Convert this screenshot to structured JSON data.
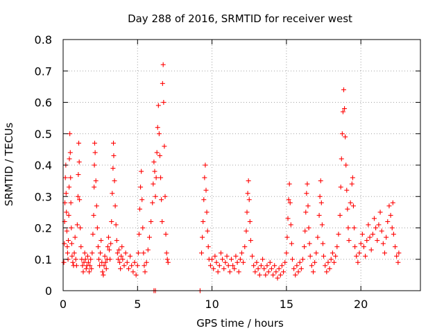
{
  "chart_data": {
    "type": "scatter",
    "title": "Day 288 of 2016, SRMTID for receiver west",
    "xlabel": "GPS time / hours",
    "ylabel": "SRMTID / TECUs",
    "xlim": [
      0,
      24
    ],
    "ylim": [
      0,
      0.8
    ],
    "xticks": [
      0,
      5,
      10,
      15,
      20
    ],
    "yticks": [
      0,
      0.1,
      0.2,
      0.3,
      0.4,
      0.5,
      0.6,
      0.7,
      0.8
    ],
    "xtick_labels": [
      "0",
      "5",
      "10",
      "15",
      "20"
    ],
    "ytick_labels": [
      "0",
      "0.1",
      "0.2",
      "0.3",
      "0.4",
      "0.5",
      "0.6",
      "0.7",
      "0.8"
    ],
    "grid": true,
    "marker": "+",
    "color": "#ff0000",
    "series": [
      {
        "name": "SRMTID",
        "points": [
          [
            0.05,
            0.09
          ],
          [
            0.08,
            0.15
          ],
          [
            0.1,
            0.22
          ],
          [
            0.12,
            0.28
          ],
          [
            0.15,
            0.36
          ],
          [
            0.18,
            0.4
          ],
          [
            0.2,
            0.31
          ],
          [
            0.22,
            0.25
          ],
          [
            0.25,
            0.19
          ],
          [
            0.28,
            0.14
          ],
          [
            0.3,
            0.12
          ],
          [
            0.33,
            0.1
          ],
          [
            0.35,
            0.16
          ],
          [
            0.38,
            0.24
          ],
          [
            0.4,
            0.33
          ],
          [
            0.42,
            0.42
          ],
          [
            0.45,
            0.5
          ],
          [
            0.48,
            0.44
          ],
          [
            0.5,
            0.36
          ],
          [
            0.52,
            0.28
          ],
          [
            0.55,
            0.2
          ],
          [
            0.58,
            0.15
          ],
          [
            0.6,
            0.11
          ],
          [
            0.65,
            0.09
          ],
          [
            0.7,
            0.08
          ],
          [
            0.75,
            0.12
          ],
          [
            0.8,
            0.17
          ],
          [
            0.85,
            0.1
          ],
          [
            0.9,
            0.08
          ],
          [
            0.95,
            0.21
          ],
          [
            1.0,
            0.3
          ],
          [
            1.02,
            0.37
          ],
          [
            1.05,
            0.47
          ],
          [
            1.08,
            0.41
          ],
          [
            1.1,
            0.29
          ],
          [
            1.15,
            0.2
          ],
          [
            1.2,
            0.14
          ],
          [
            1.25,
            0.1
          ],
          [
            1.3,
            0.08
          ],
          [
            1.35,
            0.06
          ],
          [
            1.4,
            0.09
          ],
          [
            1.45,
            0.12
          ],
          [
            1.5,
            0.1
          ],
          [
            1.55,
            0.07
          ],
          [
            1.6,
            0.08
          ],
          [
            1.65,
            0.11
          ],
          [
            1.7,
            0.09
          ],
          [
            1.75,
            0.06
          ],
          [
            1.8,
            0.08
          ],
          [
            1.85,
            0.1
          ],
          [
            1.9,
            0.07
          ],
          [
            1.95,
            0.12
          ],
          [
            2.0,
            0.18
          ],
          [
            2.05,
            0.24
          ],
          [
            2.08,
            0.33
          ],
          [
            2.1,
            0.4
          ],
          [
            2.12,
            0.47
          ],
          [
            2.15,
            0.44
          ],
          [
            2.2,
            0.35
          ],
          [
            2.25,
            0.27
          ],
          [
            2.3,
            0.2
          ],
          [
            2.35,
            0.14
          ],
          [
            2.4,
            0.1
          ],
          [
            2.45,
            0.08
          ],
          [
            2.5,
            0.12
          ],
          [
            2.55,
            0.16
          ],
          [
            2.6,
            0.09
          ],
          [
            2.65,
            0.06
          ],
          [
            2.7,
            0.05
          ],
          [
            2.75,
            0.08
          ],
          [
            2.8,
            0.11
          ],
          [
            2.85,
            0.09
          ],
          [
            2.9,
            0.07
          ],
          [
            2.95,
            0.1
          ],
          [
            3.0,
            0.14
          ],
          [
            3.05,
            0.17
          ],
          [
            3.1,
            0.13
          ],
          [
            3.15,
            0.1
          ],
          [
            3.2,
            0.15
          ],
          [
            3.25,
            0.22
          ],
          [
            3.3,
            0.31
          ],
          [
            3.35,
            0.39
          ],
          [
            3.38,
            0.47
          ],
          [
            3.4,
            0.43
          ],
          [
            3.45,
            0.35
          ],
          [
            3.5,
            0.27
          ],
          [
            3.55,
            0.21
          ],
          [
            3.6,
            0.16
          ],
          [
            3.65,
            0.12
          ],
          [
            3.7,
            0.1
          ],
          [
            3.75,
            0.13
          ],
          [
            3.8,
            0.09
          ],
          [
            3.85,
            0.07
          ],
          [
            3.9,
            0.11
          ],
          [
            3.95,
            0.14
          ],
          [
            4.0,
            0.1
          ],
          [
            4.1,
            0.08
          ],
          [
            4.2,
            0.12
          ],
          [
            4.3,
            0.09
          ],
          [
            4.4,
            0.07
          ],
          [
            4.5,
            0.11
          ],
          [
            4.6,
            0.08
          ],
          [
            4.7,
            0.06
          ],
          [
            4.8,
            0.09
          ],
          [
            4.9,
            0.05
          ],
          [
            5.0,
            0.08
          ],
          [
            5.05,
            0.12
          ],
          [
            5.1,
            0.18
          ],
          [
            5.15,
            0.26
          ],
          [
            5.2,
            0.33
          ],
          [
            5.25,
            0.38
          ],
          [
            5.3,
            0.29
          ],
          [
            5.35,
            0.2
          ],
          [
            5.4,
            0.12
          ],
          [
            5.45,
            0.08
          ],
          [
            5.5,
            0.06
          ],
          [
            5.6,
            0.09
          ],
          [
            5.7,
            0.13
          ],
          [
            5.8,
            0.17
          ],
          [
            5.9,
            0.22
          ],
          [
            6.0,
            0.28
          ],
          [
            6.05,
            0.34
          ],
          [
            6.1,
            0.41
          ],
          [
            6.15,
            0.38
          ],
          [
            6.2,
            0.3
          ],
          [
            6.25,
            0.36
          ],
          [
            6.3,
            0.44
          ],
          [
            6.35,
            0.52
          ],
          [
            6.4,
            0.59
          ],
          [
            6.45,
            0.5
          ],
          [
            6.5,
            0.43
          ],
          [
            6.55,
            0.36
          ],
          [
            6.6,
            0.29
          ],
          [
            6.65,
            0.22
          ],
          [
            6.68,
            0.66
          ],
          [
            6.72,
            0.72
          ],
          [
            6.75,
            0.6
          ],
          [
            6.8,
            0.46
          ],
          [
            6.85,
            0.3
          ],
          [
            6.9,
            0.18
          ],
          [
            6.95,
            0.12
          ],
          [
            7.0,
            0.1
          ],
          [
            7.05,
            0.09
          ],
          [
            6.1,
            0.0
          ],
          [
            6.2,
            0.0
          ],
          [
            9.2,
            0.0
          ],
          [
            9.3,
            0.12
          ],
          [
            9.35,
            0.17
          ],
          [
            9.4,
            0.22
          ],
          [
            9.45,
            0.29
          ],
          [
            9.5,
            0.36
          ],
          [
            9.55,
            0.4
          ],
          [
            9.6,
            0.32
          ],
          [
            9.65,
            0.25
          ],
          [
            9.7,
            0.19
          ],
          [
            9.75,
            0.14
          ],
          [
            9.8,
            0.1
          ],
          [
            9.9,
            0.08
          ],
          [
            10.0,
            0.1
          ],
          [
            10.1,
            0.07
          ],
          [
            10.2,
            0.11
          ],
          [
            10.3,
            0.09
          ],
          [
            10.4,
            0.06
          ],
          [
            10.5,
            0.08
          ],
          [
            10.6,
            0.12
          ],
          [
            10.7,
            0.1
          ],
          [
            10.8,
            0.07
          ],
          [
            10.9,
            0.09
          ],
          [
            11.0,
            0.11
          ],
          [
            11.1,
            0.08
          ],
          [
            11.2,
            0.06
          ],
          [
            11.3,
            0.1
          ],
          [
            11.4,
            0.08
          ],
          [
            11.5,
            0.07
          ],
          [
            11.6,
            0.11
          ],
          [
            11.7,
            0.09
          ],
          [
            11.8,
            0.06
          ],
          [
            11.9,
            0.1
          ],
          [
            12.0,
            0.12
          ],
          [
            12.1,
            0.09
          ],
          [
            12.2,
            0.14
          ],
          [
            12.3,
            0.19
          ],
          [
            12.35,
            0.25
          ],
          [
            12.4,
            0.31
          ],
          [
            12.45,
            0.35
          ],
          [
            12.5,
            0.29
          ],
          [
            12.55,
            0.22
          ],
          [
            12.6,
            0.16
          ],
          [
            12.7,
            0.11
          ],
          [
            12.8,
            0.08
          ],
          [
            12.9,
            0.06
          ],
          [
            13.0,
            0.09
          ],
          [
            13.1,
            0.07
          ],
          [
            13.2,
            0.05
          ],
          [
            13.3,
            0.08
          ],
          [
            13.4,
            0.1
          ],
          [
            13.5,
            0.07
          ],
          [
            13.6,
            0.05
          ],
          [
            13.7,
            0.08
          ],
          [
            13.8,
            0.06
          ],
          [
            13.9,
            0.09
          ],
          [
            14.0,
            0.07
          ],
          [
            14.1,
            0.05
          ],
          [
            14.2,
            0.08
          ],
          [
            14.3,
            0.06
          ],
          [
            14.4,
            0.04
          ],
          [
            14.5,
            0.07
          ],
          [
            14.6,
            0.05
          ],
          [
            14.7,
            0.08
          ],
          [
            14.8,
            0.06
          ],
          [
            14.9,
            0.09
          ],
          [
            15.0,
            0.12
          ],
          [
            15.05,
            0.17
          ],
          [
            15.1,
            0.23
          ],
          [
            15.15,
            0.29
          ],
          [
            15.2,
            0.34
          ],
          [
            15.25,
            0.28
          ],
          [
            15.3,
            0.21
          ],
          [
            15.35,
            0.15
          ],
          [
            15.4,
            0.1
          ],
          [
            15.5,
            0.07
          ],
          [
            15.6,
            0.05
          ],
          [
            15.7,
            0.08
          ],
          [
            15.8,
            0.06
          ],
          [
            15.9,
            0.09
          ],
          [
            16.0,
            0.07
          ],
          [
            16.1,
            0.1
          ],
          [
            16.2,
            0.14
          ],
          [
            16.25,
            0.19
          ],
          [
            16.3,
            0.25
          ],
          [
            16.35,
            0.31
          ],
          [
            16.4,
            0.34
          ],
          [
            16.45,
            0.27
          ],
          [
            16.5,
            0.2
          ],
          [
            16.55,
            0.15
          ],
          [
            16.6,
            0.11
          ],
          [
            16.7,
            0.08
          ],
          [
            16.8,
            0.06
          ],
          [
            16.9,
            0.09
          ],
          [
            17.0,
            0.12
          ],
          [
            17.1,
            0.17
          ],
          [
            17.2,
            0.24
          ],
          [
            17.25,
            0.3
          ],
          [
            17.3,
            0.35
          ],
          [
            17.35,
            0.28
          ],
          [
            17.4,
            0.21
          ],
          [
            17.45,
            0.15
          ],
          [
            17.5,
            0.11
          ],
          [
            17.6,
            0.08
          ],
          [
            17.7,
            0.06
          ],
          [
            17.8,
            0.09
          ],
          [
            17.9,
            0.07
          ],
          [
            18.0,
            0.1
          ],
          [
            18.1,
            0.12
          ],
          [
            18.2,
            0.09
          ],
          [
            18.3,
            0.11
          ],
          [
            18.4,
            0.14
          ],
          [
            18.5,
            0.18
          ],
          [
            18.6,
            0.24
          ],
          [
            18.65,
            0.33
          ],
          [
            18.7,
            0.42
          ],
          [
            18.75,
            0.5
          ],
          [
            18.8,
            0.57
          ],
          [
            18.85,
            0.64
          ],
          [
            18.9,
            0.58
          ],
          [
            18.95,
            0.49
          ],
          [
            19.0,
            0.4
          ],
          [
            19.05,
            0.32
          ],
          [
            19.1,
            0.26
          ],
          [
            19.15,
            0.2
          ],
          [
            19.2,
            0.16
          ],
          [
            19.3,
            0.28
          ],
          [
            19.4,
            0.34
          ],
          [
            19.45,
            0.36
          ],
          [
            19.5,
            0.27
          ],
          [
            19.55,
            0.2
          ],
          [
            19.6,
            0.14
          ],
          [
            19.7,
            0.11
          ],
          [
            19.8,
            0.09
          ],
          [
            19.9,
            0.12
          ],
          [
            20.0,
            0.15
          ],
          [
            20.1,
            0.18
          ],
          [
            20.2,
            0.14
          ],
          [
            20.3,
            0.11
          ],
          [
            20.4,
            0.16
          ],
          [
            20.5,
            0.21
          ],
          [
            20.6,
            0.17
          ],
          [
            20.7,
            0.13
          ],
          [
            20.8,
            0.18
          ],
          [
            20.9,
            0.23
          ],
          [
            21.0,
            0.2
          ],
          [
            21.1,
            0.16
          ],
          [
            21.2,
            0.21
          ],
          [
            21.3,
            0.25
          ],
          [
            21.4,
            0.19
          ],
          [
            21.5,
            0.15
          ],
          [
            21.6,
            0.12
          ],
          [
            21.7,
            0.17
          ],
          [
            21.8,
            0.22
          ],
          [
            21.9,
            0.27
          ],
          [
            22.0,
            0.24
          ],
          [
            22.1,
            0.2
          ],
          [
            22.15,
            0.28
          ],
          [
            22.2,
            0.18
          ],
          [
            22.3,
            0.14
          ],
          [
            22.4,
            0.11
          ],
          [
            22.5,
            0.09
          ],
          [
            22.55,
            0.12
          ]
        ]
      }
    ]
  }
}
